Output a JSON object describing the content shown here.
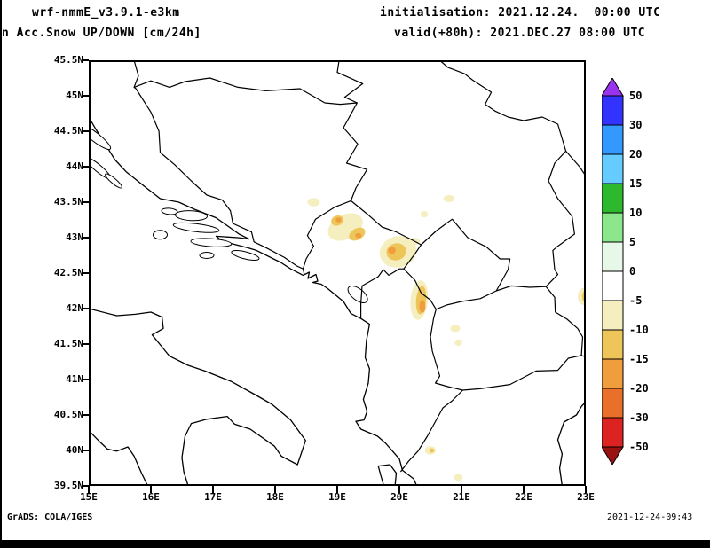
{
  "header": {
    "model": "wrf-nmmE_v3.9.1-e3km",
    "product": "n Acc.Snow UP/DOWN [cm/24h]",
    "init_label": "initialisation: 2021.12.24.  00:00 UTC",
    "valid_label": "valid(+80h): 2021.DEC.27 08:00 UTC"
  },
  "footer": {
    "credit": "GrADS: COLA/IGES",
    "timestamp": "2021-12-24-09:43"
  },
  "chart_data": {
    "type": "heatmap",
    "title": "n Acc.Snow UP/DOWN [cm/24h]",
    "units": "cm/24h",
    "region": "Balkans / Adriatic",
    "lon_range": [
      15,
      23
    ],
    "lat_range": [
      39.5,
      45.5
    ],
    "lon_ticks": [
      "15E",
      "16E",
      "17E",
      "18E",
      "19E",
      "20E",
      "21E",
      "22E",
      "23E"
    ],
    "lat_ticks": [
      "45.5N",
      "45N",
      "44.5N",
      "44N",
      "43.5N",
      "43N",
      "42.5N",
      "42N",
      "41.5N",
      "41N",
      "40.5N",
      "40N",
      "39.5N"
    ],
    "colorbar": {
      "levels": [
        50,
        30,
        20,
        15,
        10,
        5,
        0,
        -5,
        -10,
        -15,
        -20,
        -30,
        -50
      ],
      "segment_colors": [
        "#3333ff",
        "#3399ff",
        "#66ccff",
        "#2eb82e",
        "#8ce68c",
        "#e8f8e8",
        "#ffffff",
        "#f5eebf",
        "#eec558",
        "#f09d3e",
        "#e8702a",
        "#dd2222"
      ],
      "arrow_top_color": "#9933ee",
      "arrow_bottom_color": "#991111"
    },
    "patch_palette": {
      "-5 to -10": "#f5eebf",
      "-10 to -15": "#eec558",
      "-15 to -20": "#f09d3e"
    },
    "snow_patches": [
      {
        "lon": 18.62,
        "lat": 43.5,
        "rx": 0.1,
        "ry": 0.06,
        "rot": 0,
        "range": "-5 to -10"
      },
      {
        "lon": 19.13,
        "lat": 43.15,
        "rx": 0.3,
        "ry": 0.17,
        "rot": -28,
        "range": "-5 to -10"
      },
      {
        "lon": 19.0,
        "lat": 43.24,
        "rx": 0.1,
        "ry": 0.07,
        "rot": -20,
        "range": "-10 to -15"
      },
      {
        "lon": 19.02,
        "lat": 43.25,
        "rx": 0.045,
        "ry": 0.035,
        "rot": 0,
        "range": "-15 to -20"
      },
      {
        "lon": 19.32,
        "lat": 43.05,
        "rx": 0.14,
        "ry": 0.08,
        "rot": -30,
        "range": "-10 to -15"
      },
      {
        "lon": 19.34,
        "lat": 43.03,
        "rx": 0.05,
        "ry": 0.035,
        "rot": 0,
        "range": "-15 to -20"
      },
      {
        "lon": 19.98,
        "lat": 42.8,
        "rx": 0.3,
        "ry": 0.22,
        "rot": -15,
        "range": "-5 to -10"
      },
      {
        "lon": 20.25,
        "lat": 42.95,
        "rx": 0.08,
        "ry": 0.05,
        "rot": 0,
        "range": "-5 to -10"
      },
      {
        "lon": 19.95,
        "lat": 42.8,
        "rx": 0.16,
        "ry": 0.12,
        "rot": -15,
        "range": "-10 to -15"
      },
      {
        "lon": 19.88,
        "lat": 42.82,
        "rx": 0.06,
        "ry": 0.05,
        "rot": 0,
        "range": "-15 to -20"
      },
      {
        "lon": 20.32,
        "lat": 42.12,
        "rx": 0.14,
        "ry": 0.28,
        "rot": 5,
        "range": "-5 to -10"
      },
      {
        "lon": 20.35,
        "lat": 42.12,
        "rx": 0.08,
        "ry": 0.2,
        "rot": 5,
        "range": "-10 to -15"
      },
      {
        "lon": 20.37,
        "lat": 42.03,
        "rx": 0.05,
        "ry": 0.09,
        "rot": 0,
        "range": "-15 to -20"
      },
      {
        "lon": 20.4,
        "lat": 43.33,
        "rx": 0.06,
        "ry": 0.045,
        "rot": 0,
        "range": "-5 to -10"
      },
      {
        "lon": 20.8,
        "lat": 43.55,
        "rx": 0.09,
        "ry": 0.05,
        "rot": 0,
        "range": "-5 to -10"
      },
      {
        "lon": 20.9,
        "lat": 41.72,
        "rx": 0.08,
        "ry": 0.05,
        "rot": 0,
        "range": "-5 to -10"
      },
      {
        "lon": 20.95,
        "lat": 41.52,
        "rx": 0.06,
        "ry": 0.045,
        "rot": 0,
        "range": "-5 to -10"
      },
      {
        "lon": 22.97,
        "lat": 42.17,
        "rx": 0.1,
        "ry": 0.12,
        "rot": 0,
        "range": "-5 to -10"
      },
      {
        "lon": 23.0,
        "lat": 42.17,
        "rx": 0.06,
        "ry": 0.085,
        "rot": 0,
        "range": "-10 to -15"
      },
      {
        "lon": 23.02,
        "lat": 42.17,
        "rx": 0.035,
        "ry": 0.06,
        "rot": 0,
        "range": "-15 to -20"
      },
      {
        "lon": 20.5,
        "lat": 40.0,
        "rx": 0.09,
        "ry": 0.06,
        "rot": 0,
        "range": "-5 to -10"
      },
      {
        "lon": 20.52,
        "lat": 40.0,
        "rx": 0.04,
        "ry": 0.03,
        "rot": 0,
        "range": "-10 to -15"
      },
      {
        "lon": 20.95,
        "lat": 39.62,
        "rx": 0.07,
        "ry": 0.05,
        "rot": 0,
        "range": "-5 to -10"
      }
    ]
  }
}
